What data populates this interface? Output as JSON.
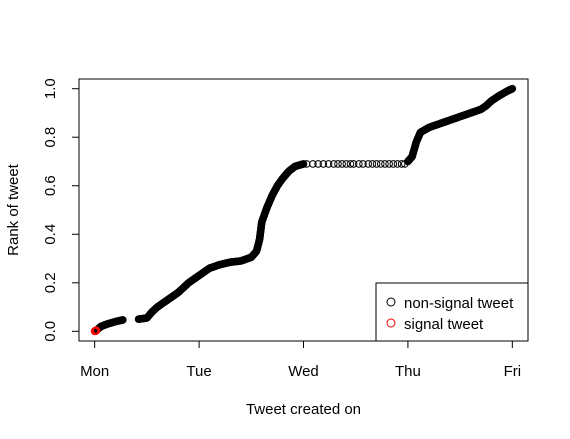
{
  "chart_data": {
    "type": "scatter",
    "xlabel": "Tweet created on",
    "ylabel": "Rank of tweet",
    "x_ticks": [
      "Mon",
      "Tue",
      "Wed",
      "Thu",
      "Fri"
    ],
    "y_ticks": [
      "0.0",
      "0.2",
      "0.4",
      "0.6",
      "0.8",
      "1.0"
    ],
    "xlim": [
      -0.15,
      4.15
    ],
    "ylim": [
      -0.04,
      1.04
    ],
    "grid": false,
    "legend_position": "bottom-right",
    "series": [
      {
        "name": "non-signal tweet",
        "color": "#000000",
        "segments": [
          [
            [
              0.02,
              0.005
            ],
            [
              0.06,
              0.02
            ],
            [
              0.12,
              0.03
            ],
            [
              0.2,
              0.04
            ],
            [
              0.27,
              0.047
            ]
          ],
          [
            [
              0.42,
              0.05
            ],
            [
              0.5,
              0.055
            ],
            [
              0.55,
              0.08
            ],
            [
              0.6,
              0.1
            ],
            [
              0.7,
              0.13
            ],
            [
              0.8,
              0.16
            ],
            [
              0.9,
              0.2
            ],
            [
              1.0,
              0.23
            ],
            [
              1.1,
              0.26
            ],
            [
              1.2,
              0.275
            ],
            [
              1.3,
              0.285
            ],
            [
              1.4,
              0.29
            ],
            [
              1.5,
              0.305
            ],
            [
              1.55,
              0.33
            ],
            [
              1.58,
              0.38
            ],
            [
              1.6,
              0.45
            ],
            [
              1.65,
              0.51
            ],
            [
              1.7,
              0.56
            ],
            [
              1.75,
              0.6
            ],
            [
              1.8,
              0.63
            ],
            [
              1.86,
              0.66
            ],
            [
              1.92,
              0.68
            ],
            [
              2.0,
              0.69
            ]
          ],
          [
            [
              3.0,
              0.7
            ],
            [
              3.04,
              0.72
            ],
            [
              3.08,
              0.78
            ],
            [
              3.12,
              0.82
            ],
            [
              3.2,
              0.84
            ],
            [
              3.3,
              0.855
            ],
            [
              3.4,
              0.87
            ],
            [
              3.5,
              0.885
            ],
            [
              3.6,
              0.9
            ],
            [
              3.7,
              0.915
            ],
            [
              3.75,
              0.93
            ],
            [
              3.8,
              0.95
            ],
            [
              3.87,
              0.97
            ],
            [
              3.95,
              0.99
            ],
            [
              4.0,
              1.0
            ]
          ]
        ],
        "sparse_points": [
          [
            2.03,
            0.69
          ],
          [
            2.09,
            0.69
          ],
          [
            2.14,
            0.69
          ],
          [
            2.19,
            0.69
          ],
          [
            2.24,
            0.69
          ],
          [
            2.29,
            0.69
          ],
          [
            2.33,
            0.69
          ],
          [
            2.37,
            0.69
          ],
          [
            2.41,
            0.69
          ],
          [
            2.45,
            0.69
          ],
          [
            2.48,
            0.69
          ],
          [
            2.53,
            0.69
          ],
          [
            2.57,
            0.69
          ],
          [
            2.62,
            0.69
          ],
          [
            2.66,
            0.69
          ],
          [
            2.7,
            0.69
          ],
          [
            2.74,
            0.69
          ],
          [
            2.78,
            0.69
          ],
          [
            2.82,
            0.69
          ],
          [
            2.86,
            0.69
          ],
          [
            2.9,
            0.69
          ],
          [
            2.94,
            0.69
          ],
          [
            2.97,
            0.69
          ]
        ]
      },
      {
        "name": "signal tweet",
        "color": "#ff0000",
        "points": [
          [
            0.0,
            0.0
          ],
          [
            0.01,
            0.002
          ]
        ]
      }
    ]
  }
}
